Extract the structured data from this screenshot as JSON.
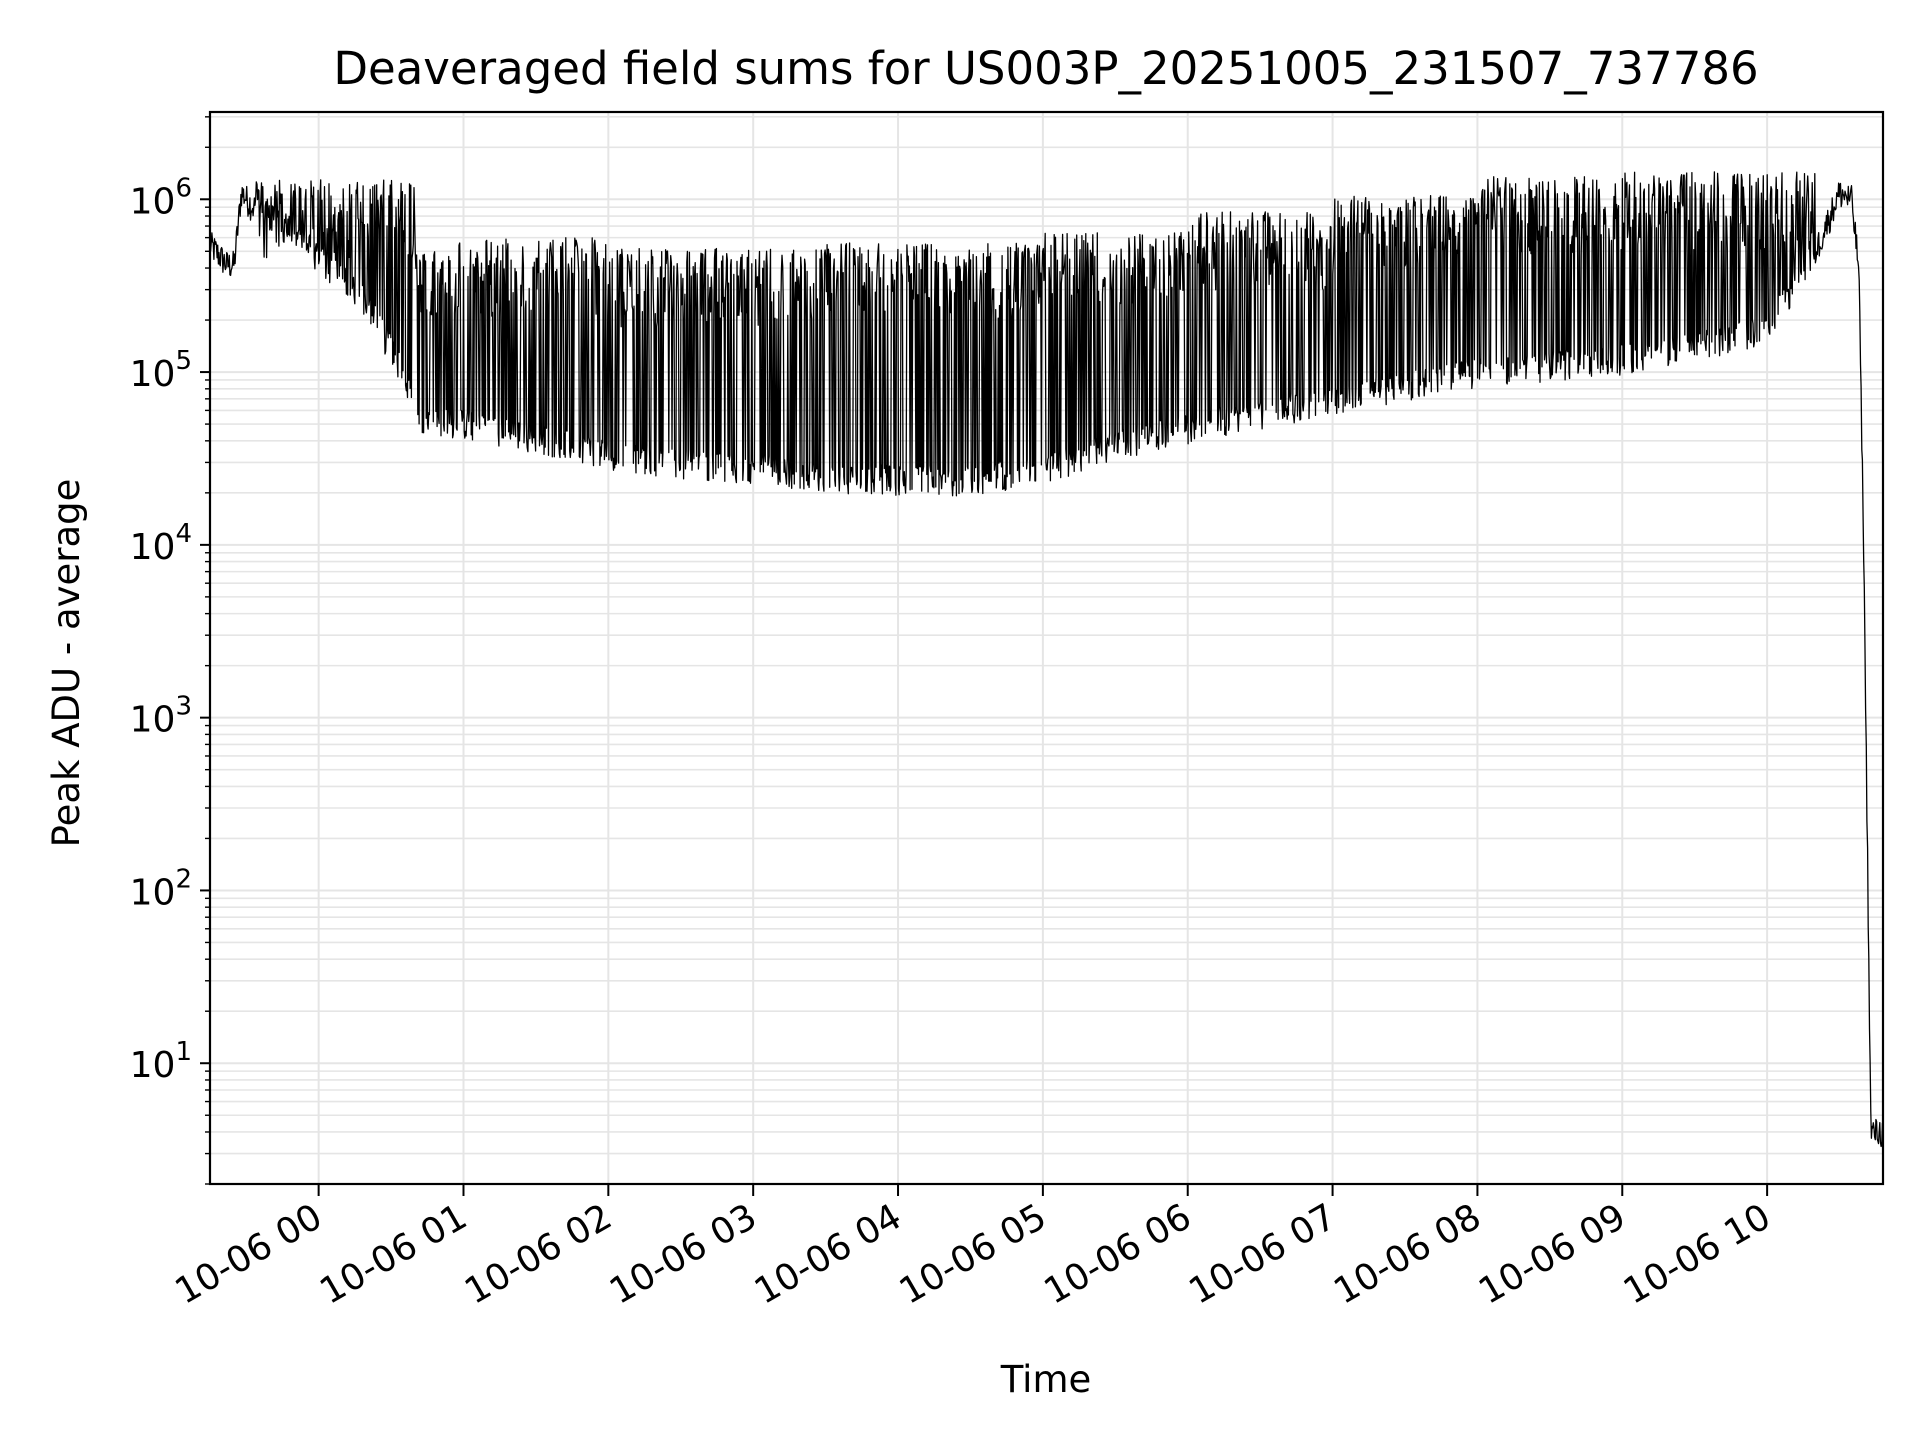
{
  "chart_data": {
    "type": "line",
    "title": "Deaveraged field sums for US003P_20251005_231507_737786",
    "xlabel": "Time",
    "ylabel": "Peak ADU - average",
    "y_scale": "log",
    "ylim": [
      2,
      3200000
    ],
    "xlim": [
      "2025-10-05 23:15",
      "2025-10-06 10:48"
    ],
    "grid": true,
    "line_color": "#000000",
    "grid_color": "#e5e5e5",
    "x_ticks": [
      "2025-10-06 00:00",
      "2025-10-06 01:00",
      "2025-10-06 02:00",
      "2025-10-06 03:00",
      "2025-10-06 04:00",
      "2025-10-06 05:00",
      "2025-10-06 06:00",
      "2025-10-06 07:00",
      "2025-10-06 08:00",
      "2025-10-06 09:00",
      "2025-10-06 10:00"
    ],
    "x_tick_labels": [
      "10-06 00",
      "10-06 01",
      "10-06 02",
      "10-06 03",
      "10-06 04",
      "10-06 05",
      "10-06 06",
      "10-06 07",
      "10-06 08",
      "10-06 09",
      "10-06 10"
    ],
    "y_tick_labels": [
      {
        "base": "10",
        "exp": "1"
      },
      {
        "base": "10",
        "exp": "2"
      },
      {
        "base": "10",
        "exp": "3"
      },
      {
        "base": "10",
        "exp": "4"
      },
      {
        "base": "10",
        "exp": "5"
      },
      {
        "base": "10",
        "exp": "6"
      }
    ],
    "series": [
      {
        "baseline": {
          "x": [
            "2025-10-05 23:15",
            "2025-10-05 23:22",
            "2025-10-05 23:25",
            "2025-10-05 23:28",
            "2025-10-05 23:33",
            "2025-10-05 23:45",
            "2025-10-06 00:00",
            "2025-10-06 00:10",
            "2025-10-06 00:20",
            "2025-10-06 00:35",
            "2025-10-06 00:40",
            "2025-10-06 01:00",
            "2025-10-06 01:30",
            "2025-10-06 02:00",
            "2025-10-06 02:30",
            "2025-10-06 03:00",
            "2025-10-06 03:30",
            "2025-10-06 04:00",
            "2025-10-06 04:30",
            "2025-10-06 05:00",
            "2025-10-06 05:30",
            "2025-10-06 06:00",
            "2025-10-06 06:30",
            "2025-10-06 07:00",
            "2025-10-06 07:30",
            "2025-10-06 08:00",
            "2025-10-06 08:30",
            "2025-10-06 09:00",
            "2025-10-06 09:30",
            "2025-10-06 10:00",
            "2025-10-06 10:20",
            "2025-10-06 10:30",
            "2025-10-06 10:35",
            "2025-10-06 10:38",
            "2025-10-06 10:40",
            "2025-10-06 10:43",
            "2025-10-06 10:44",
            "2025-10-06 10:45",
            "2025-10-06 10:48"
          ],
          "y": [
            550000,
            420000,
            420000,
            1100000,
            900000,
            700000,
            450000,
            350000,
            250000,
            100000,
            55000,
            50000,
            42000,
            34000,
            30000,
            28000,
            25000,
            24000,
            24000,
            28000,
            38000,
            48000,
            58000,
            70000,
            85000,
            100000,
            110000,
            120000,
            140000,
            180000,
            500000,
            1100000,
            1000000,
            400000,
            10000,
            4,
            4,
            4,
            4
          ]
        },
        "spikes": [
          {
            "from": "2025-10-05 23:33",
            "to": "2025-10-06 00:40",
            "peak": 1300000
          },
          {
            "from": "2025-10-06 00:40",
            "to": "2025-10-06 02:00",
            "peak": 600000
          },
          {
            "from": "2025-10-06 02:00",
            "to": "2025-10-06 03:30",
            "peak": 520000
          },
          {
            "from": "2025-10-06 03:30",
            "to": "2025-10-06 05:00",
            "peak": 560000
          },
          {
            "from": "2025-10-06 05:00",
            "to": "2025-10-06 06:00",
            "peak": 650000
          },
          {
            "from": "2025-10-06 06:00",
            "to": "2025-10-06 07:00",
            "peak": 850000
          },
          {
            "from": "2025-10-06 07:00",
            "to": "2025-10-06 08:00",
            "peak": 1050000
          },
          {
            "from": "2025-10-06 08:00",
            "to": "2025-10-06 09:00",
            "peak": 1350000
          },
          {
            "from": "2025-10-06 09:00",
            "to": "2025-10-06 10:20",
            "peak": 1450000
          }
        ]
      }
    ]
  }
}
